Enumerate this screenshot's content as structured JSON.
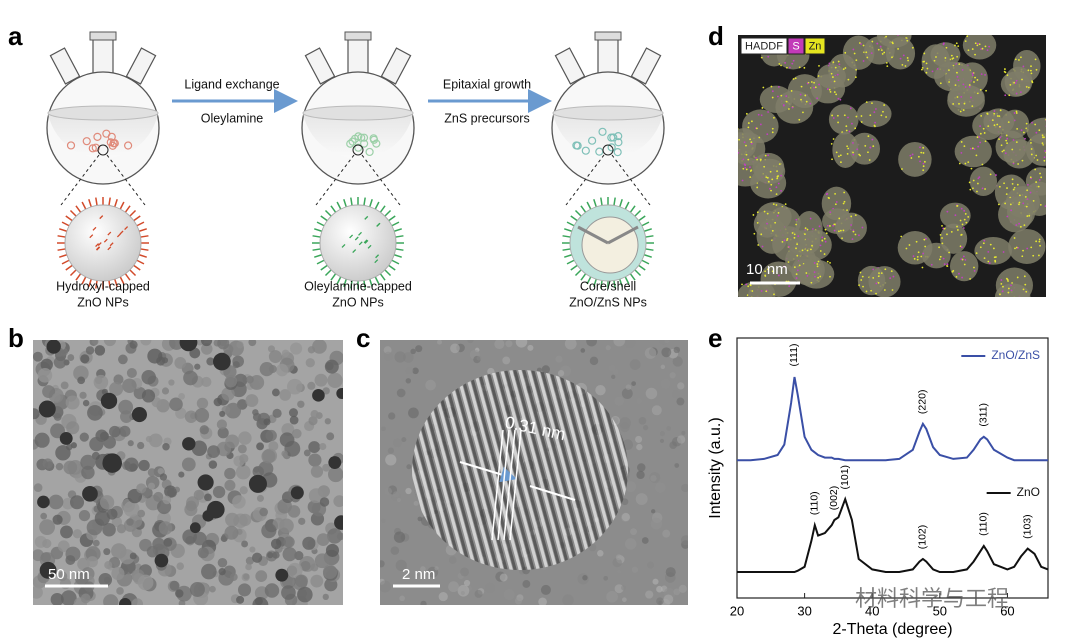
{
  "panels": {
    "a": {
      "label": "a",
      "steps": [
        {
          "top": "Ligand exchange",
          "bottom": "Oleylamine"
        },
        {
          "top": "Epitaxial growth",
          "bottom": "ZnS precursors"
        }
      ],
      "captions": [
        [
          "Hydroxyl-capped",
          "ZnO NPs"
        ],
        [
          "Oleylamine-capped",
          "ZnO NPs"
        ],
        [
          "Core/shell",
          "ZnO/ZnS NPs"
        ]
      ]
    },
    "b": {
      "label": "b",
      "scale_bar": "50 nm"
    },
    "c": {
      "label": "c",
      "scale_bar": "2 nm",
      "annotation": "0.31 nm"
    },
    "d": {
      "label": "d",
      "legend": [
        "HADDF",
        "S",
        "Zn"
      ],
      "scale_bar": "10 nm"
    },
    "e": {
      "label": "e"
    }
  },
  "chart_data": {
    "type": "line",
    "xlabel": "2-Theta (degree)",
    "ylabel": "Intensity (a.u.)",
    "xlim": [
      20,
      66
    ],
    "xticks": [
      20,
      30,
      40,
      50,
      60
    ],
    "ylim": [
      0,
      100
    ],
    "x": [
      20,
      22,
      24,
      26,
      27,
      28,
      28.5,
      29,
      30,
      31,
      31.5,
      32,
      33,
      34,
      34.4,
      35,
      36,
      37,
      38,
      40,
      42,
      44,
      46,
      47,
      47.5,
      48,
      49,
      50,
      52,
      54,
      55,
      56,
      56.5,
      57,
      58,
      60,
      61,
      62,
      63,
      64,
      65,
      66
    ],
    "series": [
      {
        "name": "ZnO/ZnS",
        "color": "#3a4fa6",
        "values": [
          53,
          53,
          53.5,
          55,
          59,
          75,
          85,
          78,
          62,
          57,
          56,
          55,
          54,
          54,
          53.5,
          53.5,
          53,
          53,
          53,
          53,
          53,
          53.5,
          57,
          64,
          67,
          65,
          58,
          55,
          53.5,
          54,
          57,
          61,
          62,
          61,
          57,
          54,
          53,
          53,
          53,
          53,
          53,
          53
        ]
      },
      {
        "name": "ZnO",
        "color": "#111111",
        "values": [
          10,
          10,
          10,
          10,
          10,
          10,
          10,
          10.5,
          12,
          22,
          28,
          24,
          25,
          28,
          30,
          31,
          38,
          30,
          15,
          11,
          10,
          10,
          11,
          14,
          15,
          14,
          11,
          10,
          10,
          11,
          14,
          18,
          20,
          18,
          13,
          11,
          12,
          16,
          19,
          17,
          12,
          11
        ]
      }
    ],
    "annotations": [
      {
        "text": "(111)",
        "x": 28.5,
        "series": 0
      },
      {
        "text": "(220)",
        "x": 47.5,
        "series": 0
      },
      {
        "text": "(311)",
        "x": 56.5,
        "series": 0
      },
      {
        "text": "(110)",
        "x": 31.5,
        "series": 1
      },
      {
        "text": "(002)",
        "x": 34.4,
        "series": 1
      },
      {
        "text": "(101)",
        "x": 36,
        "series": 1
      },
      {
        "text": "(102)",
        "x": 47.5,
        "series": 1
      },
      {
        "text": "(110)",
        "x": 56.5,
        "series": 1
      },
      {
        "text": "(103)",
        "x": 63,
        "series": 1
      }
    ]
  },
  "watermark": "材料科学与工程"
}
